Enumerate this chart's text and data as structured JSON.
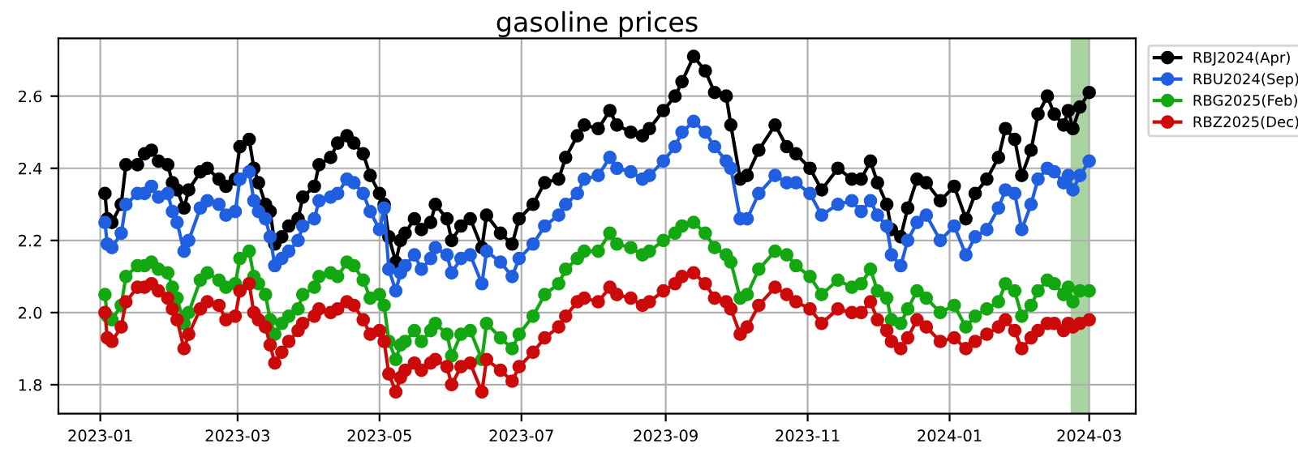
{
  "chart_data": {
    "type": "line",
    "title": "gasoline prices",
    "x": [
      "2023-01-03",
      "2023-01-04",
      "2023-01-06",
      "2023-01-10",
      "2023-01-12",
      "2023-01-17",
      "2023-01-20",
      "2023-01-23",
      "2023-01-26",
      "2023-01-30",
      "2023-02-01",
      "2023-02-03",
      "2023-02-06",
      "2023-02-08",
      "2023-02-13",
      "2023-02-16",
      "2023-02-21",
      "2023-02-24",
      "2023-02-28",
      "2023-03-02",
      "2023-03-06",
      "2023-03-08",
      "2023-03-10",
      "2023-03-13",
      "2023-03-15",
      "2023-03-17",
      "2023-03-20",
      "2023-03-23",
      "2023-03-27",
      "2023-03-29",
      "2023-04-03",
      "2023-04-05",
      "2023-04-10",
      "2023-04-13",
      "2023-04-17",
      "2023-04-20",
      "2023-04-24",
      "2023-04-27",
      "2023-05-01",
      "2023-05-03",
      "2023-05-05",
      "2023-05-08",
      "2023-05-10",
      "2023-05-12",
      "2023-05-16",
      "2023-05-19",
      "2023-05-23",
      "2023-05-25",
      "2023-05-30",
      "2023-06-01",
      "2023-06-05",
      "2023-06-09",
      "2023-06-14",
      "2023-06-16",
      "2023-06-22",
      "2023-06-27",
      "2023-06-30",
      "2023-07-06",
      "2023-07-11",
      "2023-07-17",
      "2023-07-20",
      "2023-07-25",
      "2023-07-28",
      "2023-08-03",
      "2023-08-08",
      "2023-08-11",
      "2023-08-17",
      "2023-08-22",
      "2023-08-25",
      "2023-08-31",
      "2023-09-05",
      "2023-09-08",
      "2023-09-13",
      "2023-09-18",
      "2023-09-22",
      "2023-09-27",
      "2023-09-29",
      "2023-10-03",
      "2023-10-06",
      "2023-10-11",
      "2023-10-18",
      "2023-10-23",
      "2023-10-27",
      "2023-11-02",
      "2023-11-07",
      "2023-11-14",
      "2023-11-20",
      "2023-11-24",
      "2023-11-28",
      "2023-12-01",
      "2023-12-05",
      "2023-12-07",
      "2023-12-11",
      "2023-12-14",
      "2023-12-18",
      "2023-12-22",
      "2023-12-28",
      "2024-01-03",
      "2024-01-08",
      "2024-01-12",
      "2024-01-17",
      "2024-01-22",
      "2024-01-25",
      "2024-01-29",
      "2024-02-01",
      "2024-02-05",
      "2024-02-08",
      "2024-02-12",
      "2024-02-15",
      "2024-02-19",
      "2024-02-21",
      "2024-02-23",
      "2024-02-26",
      "2024-03-01"
    ],
    "series": [
      {
        "name": "RBJ2024(Apr)",
        "color": "#000000",
        "values": [
          2.33,
          2.26,
          2.25,
          2.3,
          2.41,
          2.41,
          2.44,
          2.45,
          2.42,
          2.41,
          2.36,
          2.34,
          2.29,
          2.34,
          2.39,
          2.4,
          2.37,
          2.35,
          2.37,
          2.46,
          2.48,
          2.4,
          2.36,
          2.3,
          2.28,
          2.19,
          2.21,
          2.24,
          2.26,
          2.32,
          2.35,
          2.41,
          2.43,
          2.47,
          2.49,
          2.47,
          2.44,
          2.38,
          2.33,
          2.3,
          2.21,
          2.14,
          2.2,
          2.22,
          2.26,
          2.23,
          2.25,
          2.3,
          2.26,
          2.2,
          2.24,
          2.26,
          2.18,
          2.27,
          2.22,
          2.19,
          2.26,
          2.3,
          2.36,
          2.37,
          2.43,
          2.49,
          2.52,
          2.51,
          2.56,
          2.52,
          2.5,
          2.49,
          2.51,
          2.56,
          2.6,
          2.64,
          2.71,
          2.67,
          2.61,
          2.6,
          2.52,
          2.37,
          2.38,
          2.45,
          2.52,
          2.46,
          2.44,
          2.4,
          2.34,
          2.4,
          2.37,
          2.37,
          2.42,
          2.36,
          2.3,
          2.23,
          2.21,
          2.29,
          2.37,
          2.36,
          2.31,
          2.35,
          2.26,
          2.33,
          2.37,
          2.43,
          2.51,
          2.48,
          2.38,
          2.45,
          2.55,
          2.6,
          2.55,
          2.52,
          2.56,
          2.51,
          2.57,
          2.61
        ]
      },
      {
        "name": "RBU2024(Sep)",
        "color": "#1f5fe0",
        "values": [
          2.25,
          2.19,
          2.18,
          2.22,
          2.3,
          2.33,
          2.33,
          2.35,
          2.32,
          2.33,
          2.28,
          2.25,
          2.17,
          2.2,
          2.29,
          2.31,
          2.3,
          2.27,
          2.28,
          2.37,
          2.39,
          2.31,
          2.28,
          2.26,
          2.21,
          2.13,
          2.15,
          2.17,
          2.2,
          2.24,
          2.26,
          2.31,
          2.32,
          2.33,
          2.37,
          2.36,
          2.33,
          2.28,
          2.23,
          2.29,
          2.12,
          2.06,
          2.11,
          2.13,
          2.16,
          2.12,
          2.15,
          2.18,
          2.16,
          2.11,
          2.15,
          2.16,
          2.08,
          2.17,
          2.14,
          2.1,
          2.15,
          2.19,
          2.24,
          2.27,
          2.3,
          2.33,
          2.37,
          2.38,
          2.43,
          2.4,
          2.39,
          2.37,
          2.38,
          2.42,
          2.46,
          2.5,
          2.53,
          2.5,
          2.46,
          2.42,
          2.4,
          2.26,
          2.26,
          2.33,
          2.38,
          2.36,
          2.36,
          2.33,
          2.27,
          2.3,
          2.31,
          2.28,
          2.31,
          2.27,
          2.24,
          2.16,
          2.13,
          2.2,
          2.25,
          2.27,
          2.2,
          2.24,
          2.16,
          2.21,
          2.23,
          2.29,
          2.34,
          2.33,
          2.23,
          2.3,
          2.37,
          2.4,
          2.39,
          2.36,
          2.38,
          2.34,
          2.38,
          2.42
        ]
      },
      {
        "name": "RBG2025(Feb)",
        "color": "#13a812",
        "values": [
          2.05,
          1.99,
          1.98,
          2.02,
          2.1,
          2.13,
          2.13,
          2.14,
          2.12,
          2.11,
          2.07,
          2.04,
          1.97,
          2.0,
          2.09,
          2.11,
          2.09,
          2.07,
          2.08,
          2.15,
          2.17,
          2.1,
          2.08,
          2.05,
          1.98,
          1.94,
          1.97,
          1.99,
          2.01,
          2.05,
          2.07,
          2.1,
          2.11,
          2.1,
          2.14,
          2.13,
          2.09,
          2.04,
          2.05,
          2.02,
          1.92,
          1.87,
          1.91,
          1.92,
          1.95,
          1.92,
          1.95,
          1.97,
          1.94,
          1.88,
          1.94,
          1.95,
          1.87,
          1.97,
          1.93,
          1.9,
          1.94,
          1.99,
          2.05,
          2.08,
          2.12,
          2.15,
          2.17,
          2.17,
          2.22,
          2.19,
          2.18,
          2.16,
          2.17,
          2.2,
          2.22,
          2.24,
          2.25,
          2.22,
          2.18,
          2.16,
          2.14,
          2.04,
          2.05,
          2.12,
          2.17,
          2.16,
          2.13,
          2.1,
          2.05,
          2.09,
          2.07,
          2.08,
          2.12,
          2.06,
          2.04,
          1.98,
          1.97,
          2.01,
          2.06,
          2.04,
          2.0,
          2.02,
          1.96,
          1.99,
          2.01,
          2.03,
          2.08,
          2.06,
          1.99,
          2.02,
          2.06,
          2.09,
          2.08,
          2.05,
          2.07,
          2.03,
          2.06,
          2.06
        ]
      },
      {
        "name": "RBZ2025(Dec)",
        "color": "#cc0a0a",
        "values": [
          2.0,
          1.93,
          1.92,
          1.96,
          2.03,
          2.07,
          2.07,
          2.08,
          2.06,
          2.04,
          2.01,
          1.98,
          1.9,
          1.94,
          2.01,
          2.03,
          2.02,
          1.98,
          1.99,
          2.06,
          2.08,
          2.0,
          1.98,
          1.96,
          1.91,
          1.86,
          1.89,
          1.92,
          1.95,
          1.97,
          1.99,
          2.01,
          2.0,
          2.01,
          2.03,
          2.02,
          1.98,
          1.94,
          1.95,
          1.92,
          1.83,
          1.78,
          1.82,
          1.84,
          1.86,
          1.84,
          1.86,
          1.87,
          1.85,
          1.8,
          1.85,
          1.86,
          1.78,
          1.87,
          1.84,
          1.81,
          1.85,
          1.89,
          1.93,
          1.96,
          1.99,
          2.03,
          2.04,
          2.03,
          2.07,
          2.05,
          2.04,
          2.02,
          2.03,
          2.06,
          2.08,
          2.1,
          2.11,
          2.08,
          2.04,
          2.03,
          2.01,
          1.94,
          1.96,
          2.02,
          2.07,
          2.05,
          2.03,
          2.01,
          1.97,
          2.01,
          2.0,
          2.0,
          2.03,
          1.98,
          1.95,
          1.92,
          1.9,
          1.93,
          1.98,
          1.96,
          1.92,
          1.93,
          1.9,
          1.92,
          1.94,
          1.96,
          1.98,
          1.95,
          1.9,
          1.93,
          1.95,
          1.97,
          1.97,
          1.95,
          1.97,
          1.96,
          1.97,
          1.98
        ]
      }
    ],
    "xlim": [
      "2022-12-14",
      "2024-03-21"
    ],
    "xticks": [
      "2023-01",
      "2023-03",
      "2023-05",
      "2023-07",
      "2023-09",
      "2023-11",
      "2024-01",
      "2024-03"
    ],
    "ylim": [
      1.72,
      2.76
    ],
    "yticks": [
      1.8,
      {
        "value": 2,
        "label": "2.0"
      },
      2.2,
      2.4,
      2.6
    ],
    "bands": [
      {
        "axis": "x",
        "from": "2024-02-22",
        "to": "2024-03-01",
        "color": "#a9d3a0"
      }
    ],
    "grid": true,
    "legend": "top right",
    "marker": "circle",
    "line_style": "solid"
  }
}
